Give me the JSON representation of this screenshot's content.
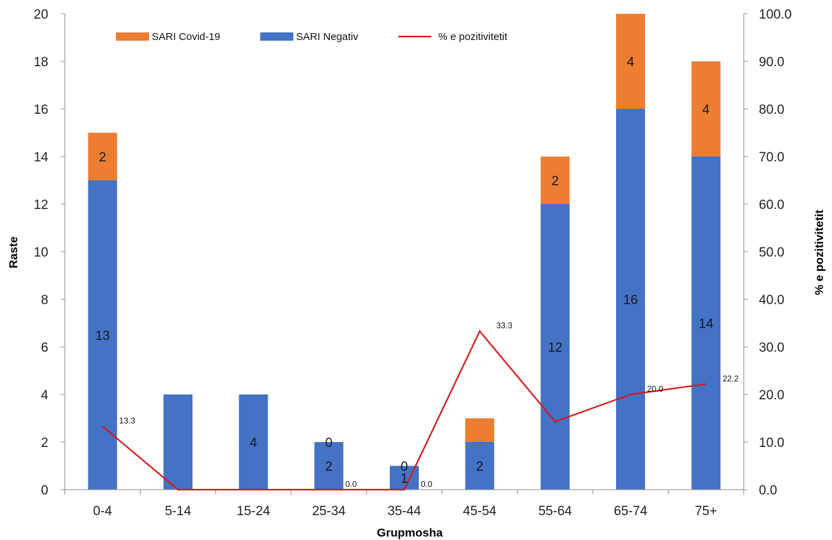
{
  "chart_data": {
    "type": "bar",
    "stacked": true,
    "categories": [
      "0-4",
      "5-14",
      "15-24",
      "25-34",
      "35-44",
      "45-54",
      "55-64",
      "65-74",
      "75+"
    ],
    "series": [
      {
        "name": "SARI Negativ",
        "type": "bar",
        "axis": "left",
        "color": "#4472C4",
        "values": [
          13,
          4,
          4,
          2,
          1,
          2,
          12,
          16,
          14
        ],
        "labels": [
          "13",
          "",
          "4",
          "2",
          "1",
          "2",
          "12",
          "16",
          "14"
        ]
      },
      {
        "name": "SARI Covid-19",
        "type": "bar",
        "axis": "left",
        "color": "#ED7D31",
        "values": [
          2,
          0,
          0,
          0,
          0,
          1,
          2,
          4,
          4
        ],
        "labels": [
          "2",
          "",
          "",
          "0",
          "0",
          "",
          "2",
          "4",
          "4"
        ]
      },
      {
        "name": "% e pozitivitetit",
        "type": "line",
        "axis": "right",
        "color": "#D7191C",
        "values": [
          13.3,
          0.0,
          0.0,
          0.0,
          0.0,
          33.3,
          14.3,
          20.0,
          22.2
        ],
        "labels": [
          "13.3",
          "",
          "",
          "0.0",
          "0.0",
          "33.3",
          "",
          "20.0",
          "22.2"
        ]
      }
    ],
    "legend_order": [
      "SARI Covid-19",
      "SARI Negativ",
      "% e pozitivitetit"
    ],
    "legend_position": "top",
    "xlabel": "Grupmosha",
    "ylabel": "Raste",
    "y2label": "% e pozitivitetit",
    "ylim": [
      0,
      20
    ],
    "yticks": [
      "0",
      "2",
      "4",
      "6",
      "8",
      "10",
      "12",
      "14",
      "16",
      "18",
      "20"
    ],
    "y2lim": [
      0,
      100
    ],
    "y2ticks": [
      "0.0",
      "10.0",
      "20.0",
      "30.0",
      "40.0",
      "50.0",
      "60.0",
      "70.0",
      "80.0",
      "90.0",
      "100.0"
    ],
    "grid": false
  }
}
